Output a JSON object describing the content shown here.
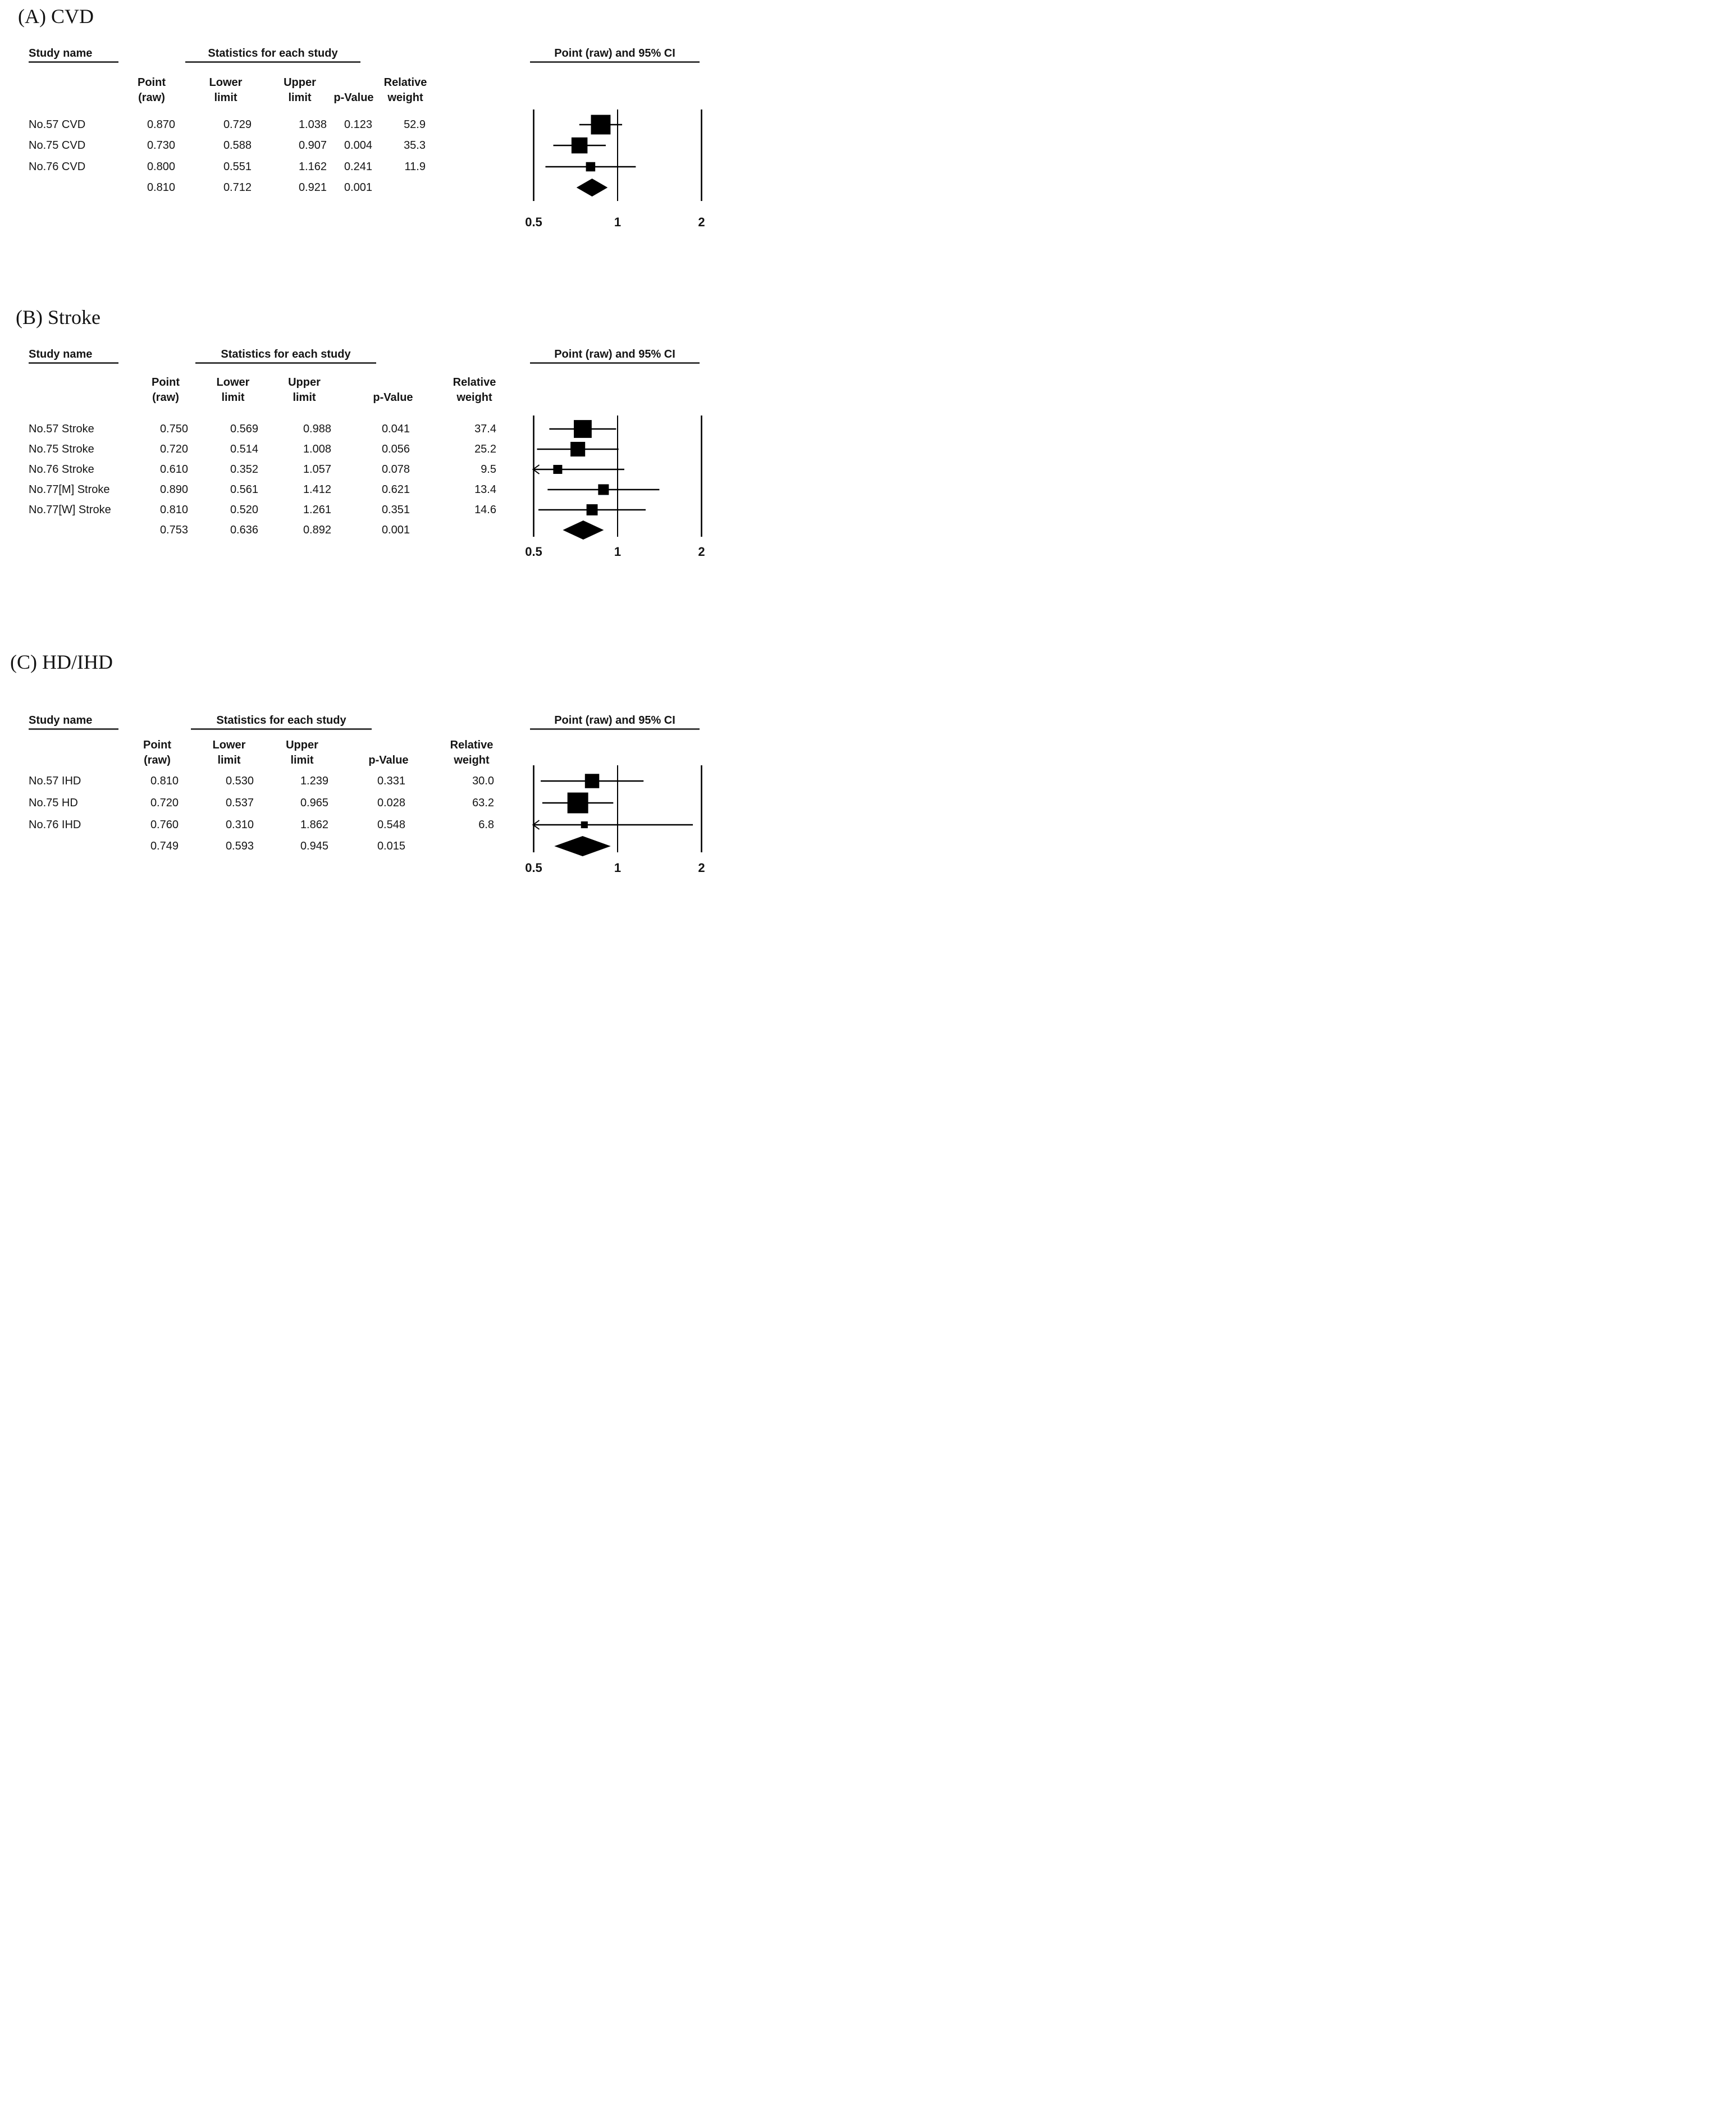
{
  "shared": {
    "study_col_header": "Study name",
    "stats_col_header": "Statistics for each study",
    "plot_col_header": "Point (raw) and 95% CI",
    "sub_headers": [
      [
        "Point",
        "(raw)"
      ],
      [
        "Lower",
        "limit"
      ],
      [
        "Upper",
        "limit"
      ],
      [
        "",
        "p-Value"
      ],
      [
        "Relative",
        "weight"
      ]
    ],
    "axis_tick_labels": [
      "0.5",
      "1",
      "2"
    ]
  },
  "chart_data": [
    {
      "type": "scatter",
      "subtype": "forest-plot",
      "panel_label": "(A) CVD",
      "x_scale": "log",
      "xlim": [
        0.5,
        2
      ],
      "x_ticks": [
        0.5,
        1,
        2
      ],
      "columns": [
        "Point (raw)",
        "Lower limit",
        "Upper limit",
        "p-Value",
        "Relative weight"
      ],
      "studies": [
        {
          "name": "No.57 CVD",
          "point": 0.87,
          "lower": 0.729,
          "upper": 1.038,
          "p_value": 0.123,
          "relative_weight": 52.9
        },
        {
          "name": "No.75 CVD",
          "point": 0.73,
          "lower": 0.588,
          "upper": 0.907,
          "p_value": 0.004,
          "relative_weight": 35.3
        },
        {
          "name": "No.76 CVD",
          "point": 0.8,
          "lower": 0.551,
          "upper": 1.162,
          "p_value": 0.241,
          "relative_weight": 11.9
        }
      ],
      "summary": {
        "point": 0.81,
        "lower": 0.712,
        "upper": 0.921,
        "p_value": 0.001
      }
    },
    {
      "type": "scatter",
      "subtype": "forest-plot",
      "panel_label": "(B) Stroke",
      "x_scale": "log",
      "xlim": [
        0.5,
        2
      ],
      "x_ticks": [
        0.5,
        1,
        2
      ],
      "columns": [
        "Point (raw)",
        "Lower limit",
        "Upper limit",
        "p-Value",
        "Relative weight"
      ],
      "studies": [
        {
          "name": "No.57 Stroke",
          "point": 0.75,
          "lower": 0.569,
          "upper": 0.988,
          "p_value": 0.041,
          "relative_weight": 37.4
        },
        {
          "name": "No.75 Stroke",
          "point": 0.72,
          "lower": 0.514,
          "upper": 1.008,
          "p_value": 0.056,
          "relative_weight": 25.2
        },
        {
          "name": "No.76 Stroke",
          "point": 0.61,
          "lower": 0.352,
          "upper": 1.057,
          "p_value": 0.078,
          "relative_weight": 9.5
        },
        {
          "name": "No.77[M] Stroke",
          "point": 0.89,
          "lower": 0.561,
          "upper": 1.412,
          "p_value": 0.621,
          "relative_weight": 13.4
        },
        {
          "name": "No.77[W] Stroke",
          "point": 0.81,
          "lower": 0.52,
          "upper": 1.261,
          "p_value": 0.351,
          "relative_weight": 14.6
        }
      ],
      "summary": {
        "point": 0.753,
        "lower": 0.636,
        "upper": 0.892,
        "p_value": 0.001
      }
    },
    {
      "type": "scatter",
      "subtype": "forest-plot",
      "panel_label": "(C) HD/IHD",
      "x_scale": "log",
      "xlim": [
        0.5,
        2
      ],
      "x_ticks": [
        0.5,
        1,
        2
      ],
      "columns": [
        "Point (raw)",
        "Lower limit",
        "Upper limit",
        "p-Value",
        "Relative weight"
      ],
      "studies": [
        {
          "name": "No.57 IHD",
          "point": 0.81,
          "lower": 0.53,
          "upper": 1.239,
          "p_value": 0.331,
          "relative_weight": 30.0
        },
        {
          "name": "No.75 HD",
          "point": 0.72,
          "lower": 0.537,
          "upper": 0.965,
          "p_value": 0.028,
          "relative_weight": 63.2
        },
        {
          "name": "No.76 IHD",
          "point": 0.76,
          "lower": 0.31,
          "upper": 1.862,
          "p_value": 0.548,
          "relative_weight": 6.8
        }
      ],
      "summary": {
        "point": 0.749,
        "lower": 0.593,
        "upper": 0.945,
        "p_value": 0.015
      }
    }
  ],
  "colors": {
    "ink": "#111111",
    "marker": "#000000",
    "underline": "#3c3c3c",
    "background": "#ffffff"
  }
}
